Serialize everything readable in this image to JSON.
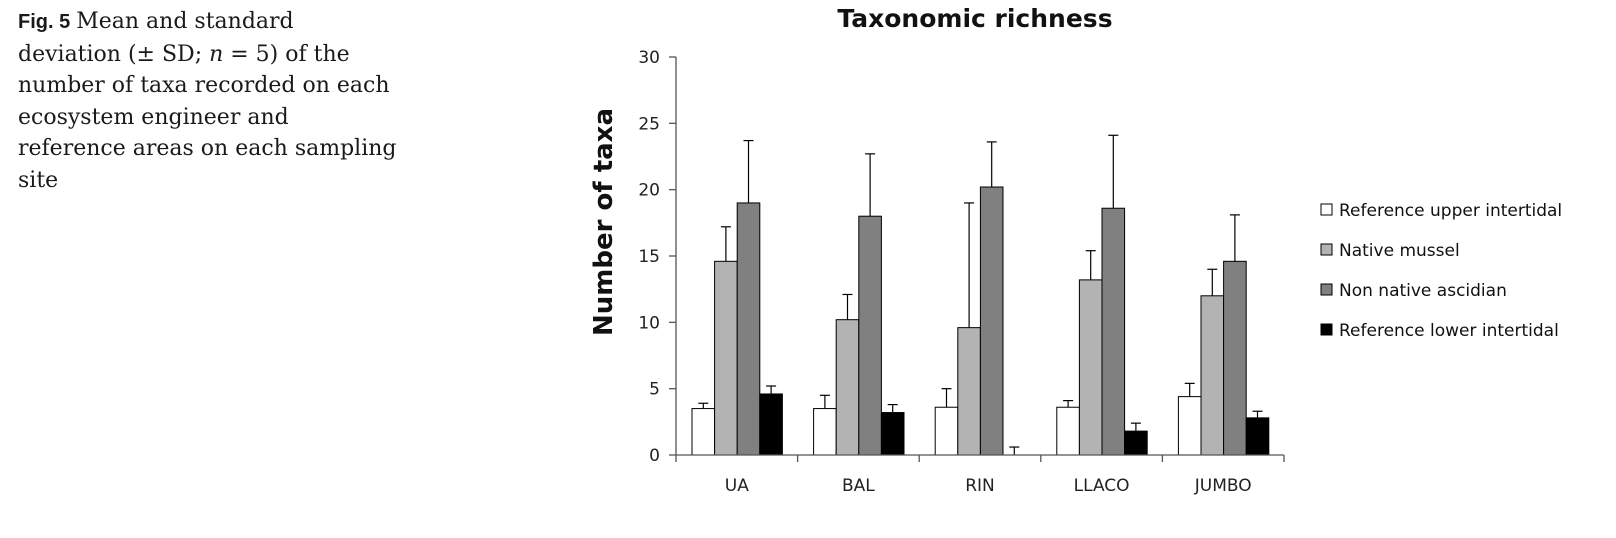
{
  "caption": {
    "label": "Fig. 5",
    "text_1": "Mean and standard deviation (± SD; ",
    "n_symbol": "n",
    "text_2": " = 5) of the number of taxa recorded on each ecosystem engineer and reference areas on each sampling site"
  },
  "chart_data": {
    "type": "bar",
    "title": "Taxonomic richness",
    "xlabel": "",
    "ylabel": "Number of taxa",
    "ylim": [
      0,
      30
    ],
    "yticks": [
      0,
      5,
      10,
      15,
      20,
      25,
      30
    ],
    "grid": false,
    "legend_position": "right",
    "categories": [
      "UA",
      "BAL",
      "RIN",
      "LLACO",
      "JUMBO"
    ],
    "series": [
      {
        "name": "Reference upper intertidal",
        "color": "#ffffff",
        "values": [
          3.5,
          3.5,
          3.6,
          3.6,
          4.4
        ],
        "sd": [
          0.4,
          1.0,
          1.4,
          0.5,
          1.0
        ]
      },
      {
        "name": "Native mussel",
        "color": "#b3b3b3",
        "values": [
          14.6,
          10.2,
          9.6,
          13.2,
          12.0
        ],
        "sd": [
          2.6,
          1.9,
          9.4,
          2.2,
          2.0
        ]
      },
      {
        "name": "Non native ascidian",
        "color": "#808080",
        "values": [
          19.0,
          18.0,
          20.2,
          18.6,
          14.6
        ],
        "sd": [
          4.7,
          4.7,
          3.4,
          5.5,
          3.5
        ]
      },
      {
        "name": "Reference lower intertidal",
        "color": "#000000",
        "values": [
          4.6,
          3.2,
          0.0,
          1.8,
          2.8
        ],
        "sd": [
          0.6,
          0.6,
          0.6,
          0.6,
          0.5
        ]
      }
    ]
  }
}
